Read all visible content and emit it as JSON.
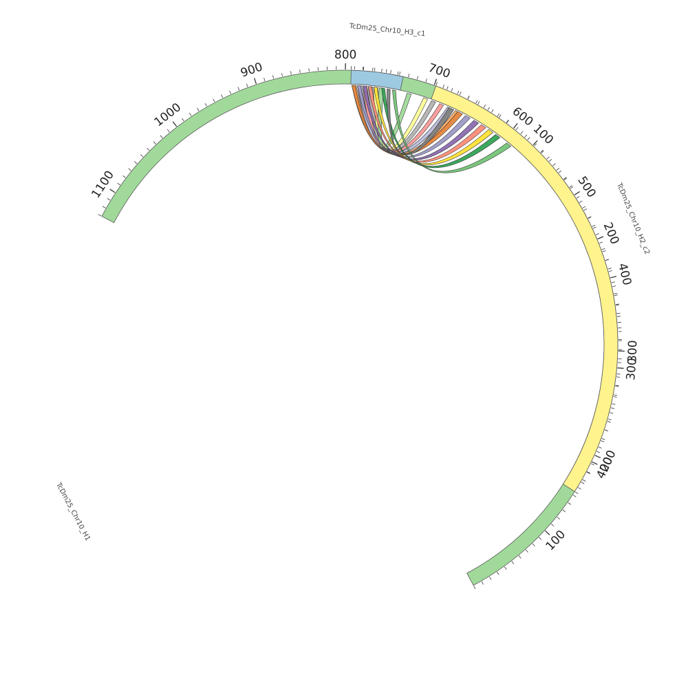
{
  "chart_data": {
    "type": "chord",
    "segments": [
      {
        "name": "TcDm25_Chr10_H1",
        "length": 1130,
        "color": "#a1d99b",
        "tick_labels": [
          "100",
          "200",
          "300",
          "400",
          "500",
          "600",
          "700",
          "800",
          "900",
          "1000",
          "1100"
        ]
      },
      {
        "name": "TcDm25_Chr10_H3_c1",
        "length": 45,
        "color": "#9ecae1",
        "tick_labels": []
      },
      {
        "name": "TcDm25_Chr10_H2_c2",
        "length": 430,
        "color": "#fff38d",
        "tick_labels": [
          "100",
          "200",
          "300",
          "400"
        ]
      }
    ],
    "links": [
      {
        "from_segment": "TcDm25_Chr10_H3_c1",
        "from_pos": [
          1,
          5
        ],
        "to_segment": "TcDm25_Chr10_H1",
        "to_pos": [
          662,
          667
        ],
        "color": "#fdae6b"
      },
      {
        "from_segment": "TcDm25_Chr10_H3_c1",
        "from_pos": [
          6,
          10
        ],
        "to_segment": "TcDm25_Chr10_H1",
        "to_pos": [
          672,
          677
        ],
        "color": "#bcbddc"
      },
      {
        "from_segment": "TcDm25_Chr10_H3_c1",
        "from_pos": [
          11,
          15
        ],
        "to_segment": "TcDm25_Chr10_H1",
        "to_pos": [
          682,
          687
        ],
        "color": "#fb9a99"
      },
      {
        "from_segment": "TcDm25_Chr10_H3_c1",
        "from_pos": [
          16,
          20
        ],
        "to_segment": "TcDm25_Chr10_H1",
        "to_pos": [
          692,
          697
        ],
        "color": "#b3b3b3"
      },
      {
        "from_segment": "TcDm25_Chr10_H3_c1",
        "from_pos": [
          21,
          25
        ],
        "to_segment": "TcDm25_Chr10_H1",
        "to_pos": [
          702,
          707
        ],
        "color": "#ffff99"
      },
      {
        "from_segment": "TcDm25_Chr10_H3_c1",
        "from_pos": [
          26,
          30
        ],
        "to_segment": "TcDm25_Chr10_H1",
        "to_pos": [
          722,
          727
        ],
        "color": "#a1d99b"
      },
      {
        "from_segment": "TcDm25_Chr10_H3_c1",
        "from_pos": [
          1,
          4
        ],
        "to_segment": "TcDm25_Chr10_H2_c2",
        "to_pos": [
          27,
          32
        ],
        "color": "#e6863c"
      },
      {
        "from_segment": "TcDm25_Chr10_H3_c1",
        "from_pos": [
          6,
          9
        ],
        "to_segment": "TcDm25_Chr10_H2_c2",
        "to_pos": [
          35,
          40
        ],
        "color": "#9e9ac8"
      },
      {
        "from_segment": "TcDm25_Chr10_H3_c1",
        "from_pos": [
          11,
          14
        ],
        "to_segment": "TcDm25_Chr10_H2_c2",
        "to_pos": [
          44,
          49
        ],
        "color": "#8c6bb1"
      },
      {
        "from_segment": "TcDm25_Chr10_H3_c1",
        "from_pos": [
          16,
          19
        ],
        "to_segment": "TcDm25_Chr10_H2_c2",
        "to_pos": [
          52,
          57
        ],
        "color": "#ff8c78"
      },
      {
        "from_segment": "TcDm25_Chr10_H3_c1",
        "from_pos": [
          21,
          24
        ],
        "to_segment": "TcDm25_Chr10_H2_c2",
        "to_pos": [
          60,
          65
        ],
        "color": "#ffe135"
      },
      {
        "from_segment": "TcDm25_Chr10_H3_c1",
        "from_pos": [
          28,
          31
        ],
        "to_segment": "TcDm25_Chr10_H2_c2",
        "to_pos": [
          68,
          73
        ],
        "color": "#31a354"
      },
      {
        "from_segment": "TcDm25_Chr10_H3_c1",
        "from_pos": [
          33,
          36
        ],
        "to_segment": "TcDm25_Chr10_H2_c2",
        "to_pos": [
          18,
          23
        ],
        "color": "#808080"
      },
      {
        "from_segment": "TcDm25_Chr10_H3_c1",
        "from_pos": [
          38,
          41
        ],
        "to_segment": "TcDm25_Chr10_H2_c2",
        "to_pos": [
          81,
          86
        ],
        "color": "#74c476"
      }
    ]
  }
}
